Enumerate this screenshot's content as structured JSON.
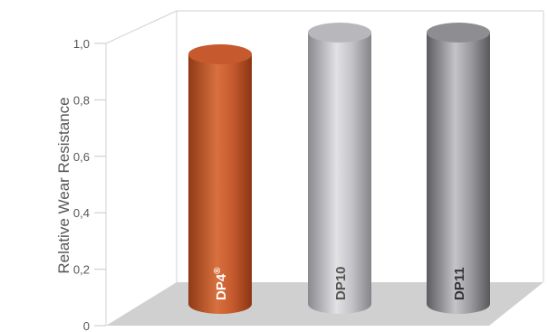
{
  "chart_data": {
    "type": "bar",
    "style": "3d-cylinder",
    "title": "",
    "xlabel": "",
    "ylabel": "Relative Wear Resistance",
    "ylim": [
      0,
      1.0
    ],
    "y_ticks": [
      "0",
      "0,2",
      "0,4",
      "0,6",
      "0,8",
      "1,0"
    ],
    "categories": [
      {
        "label": "DP4",
        "mark": "®",
        "label_color": "#ffffff"
      },
      {
        "label": "DP10",
        "mark": "",
        "label_color": "#555555"
      },
      {
        "label": "DP11",
        "mark": "",
        "label_color": "#333333"
      }
    ],
    "values": [
      0.92,
      1.0,
      1.0
    ],
    "colors": [
      "#c65a2e",
      "#b8b8bc",
      "#8e8e92"
    ],
    "grid": false,
    "legend": "none"
  }
}
